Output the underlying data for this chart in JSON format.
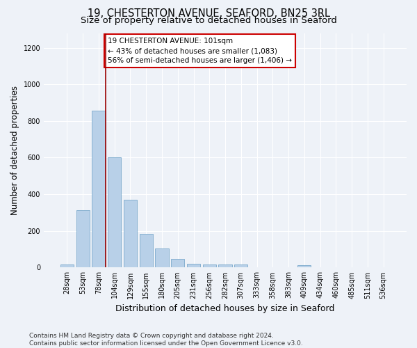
{
  "title": "19, CHESTERTON AVENUE, SEAFORD, BN25 3RL",
  "subtitle": "Size of property relative to detached houses in Seaford",
  "xlabel": "Distribution of detached houses by size in Seaford",
  "ylabel": "Number of detached properties",
  "categories": [
    "28sqm",
    "53sqm",
    "78sqm",
    "104sqm",
    "129sqm",
    "155sqm",
    "180sqm",
    "205sqm",
    "231sqm",
    "256sqm",
    "282sqm",
    "307sqm",
    "333sqm",
    "358sqm",
    "383sqm",
    "409sqm",
    "434sqm",
    "460sqm",
    "485sqm",
    "511sqm",
    "536sqm"
  ],
  "values": [
    15,
    315,
    855,
    600,
    370,
    185,
    105,
    47,
    20,
    18,
    18,
    15,
    0,
    0,
    0,
    12,
    0,
    0,
    0,
    0,
    0
  ],
  "bar_color": "#b8d0e8",
  "bar_edge_color": "#6a9ec5",
  "vline_color": "#990000",
  "annotation_text": "19 CHESTERTON AVENUE: 101sqm\n← 43% of detached houses are smaller (1,083)\n56% of semi-detached houses are larger (1,406) →",
  "annotation_box_color": "#ffffff",
  "annotation_box_edge": "#cc0000",
  "ylim": [
    0,
    1280
  ],
  "yticks": [
    0,
    200,
    400,
    600,
    800,
    1000,
    1200
  ],
  "footer_line1": "Contains HM Land Registry data © Crown copyright and database right 2024.",
  "footer_line2": "Contains public sector information licensed under the Open Government Licence v3.0.",
  "bg_color": "#eef2f8",
  "plot_bg_color": "#eef2f8",
  "grid_color": "#ffffff",
  "title_fontsize": 10.5,
  "subtitle_fontsize": 9.5,
  "ylabel_fontsize": 8.5,
  "xlabel_fontsize": 9,
  "tick_fontsize": 7,
  "annotation_fontsize": 7.5,
  "footer_fontsize": 6.5
}
